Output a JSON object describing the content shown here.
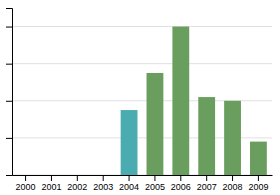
{
  "chart_data": {
    "type": "bar",
    "categories": [
      "2000",
      "2001",
      "2002",
      "2003",
      "2004",
      "2005",
      "2006",
      "2007",
      "2008",
      "2009"
    ],
    "values": [
      0,
      0,
      0,
      0,
      35,
      55,
      80,
      42,
      40,
      18
    ],
    "colors": [
      "#6a9e5f",
      "#6a9e5f",
      "#6a9e5f",
      "#6a9e5f",
      "#4aabb0",
      "#6a9e5f",
      "#6a9e5f",
      "#6a9e5f",
      "#6a9e5f",
      "#6a9e5f"
    ],
    "ylim": [
      0,
      90
    ],
    "yticks": [
      0,
      20,
      40,
      60,
      80
    ],
    "grid": true,
    "tick_labels": "x"
  }
}
